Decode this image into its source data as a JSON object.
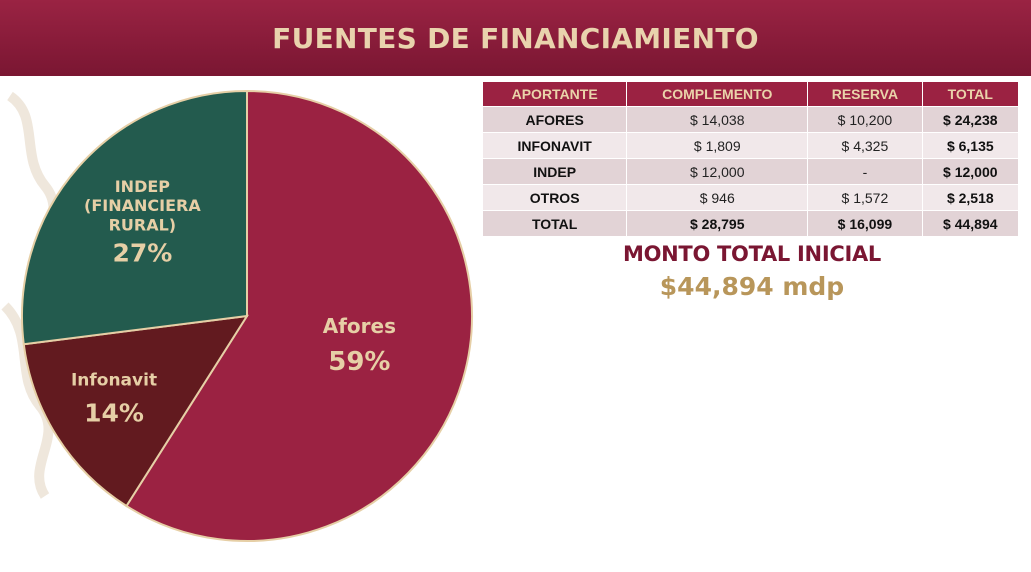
{
  "header": {
    "title": "FUENTES DE FINANCIAMIENTO"
  },
  "chart_data": {
    "type": "pie",
    "title": "",
    "slices": [
      {
        "label_lines": [
          "Afores"
        ],
        "pct_label": "59%",
        "value": 59,
        "color": "#9b2242"
      },
      {
        "label_lines": [
          "Infonavit"
        ],
        "pct_label": "14%",
        "value": 14,
        "color": "#621a1f"
      },
      {
        "label_lines": [
          "INDEP",
          "(FINANCIERA",
          "RURAL)"
        ],
        "pct_label": "27%",
        "value": 27,
        "color": "#235b4e"
      }
    ],
    "legend": "none"
  },
  "table": {
    "headers": [
      "APORTANTE",
      "COMPLEMENTO",
      "RESERVA",
      "TOTAL"
    ],
    "rows": [
      [
        "AFORES",
        "$ 14,038",
        "$ 10,200",
        "$ 24,238"
      ],
      [
        "INFONAVIT",
        "$ 1,809",
        "$ 4,325",
        "$ 6,135"
      ],
      [
        "INDEP",
        "$ 12,000",
        "-",
        "$ 12,000"
      ],
      [
        "OTROS",
        "$ 946",
        "$ 1,572",
        "$ 2,518"
      ],
      [
        "TOTAL",
        "$ 28,795",
        "$ 16,099",
        "$ 44,894"
      ]
    ]
  },
  "summary": {
    "label": "MONTO TOTAL INICIAL",
    "value": "$44,894 mdp"
  },
  "colors": {
    "brand": "#9b2242",
    "gold": "#b8965a",
    "cream": "#e6cfa6",
    "green": "#235b4e",
    "dark_red": "#621a1f"
  }
}
